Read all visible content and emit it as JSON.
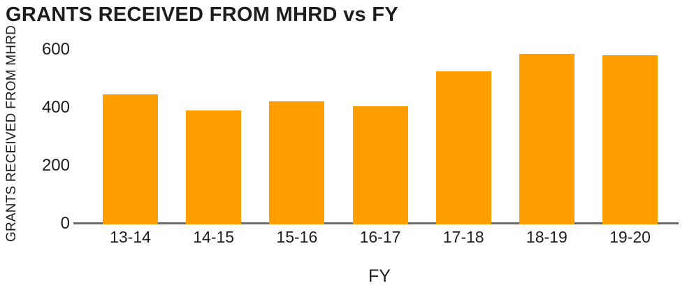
{
  "chart_data": {
    "type": "bar",
    "title": "GRANTS RECEIVED FROM MHRD vs FY",
    "xlabel": "FY",
    "ylabel": "GRANTS RECEIVED FROM MHRD",
    "categories": [
      "13-14",
      "14-15",
      "15-16",
      "16-17",
      "17-18",
      "18-19",
      "19-20"
    ],
    "values": [
      445,
      390,
      420,
      405,
      525,
      585,
      580
    ],
    "ylim": [
      0,
      600
    ],
    "yticks": [
      0,
      200,
      400,
      600
    ],
    "grid": false,
    "legend": false,
    "colors": {
      "bar": "#FF9E00",
      "axis_line": "#6B6B6B",
      "text": "#1D1D1F",
      "background": "#FFFFFF"
    }
  }
}
